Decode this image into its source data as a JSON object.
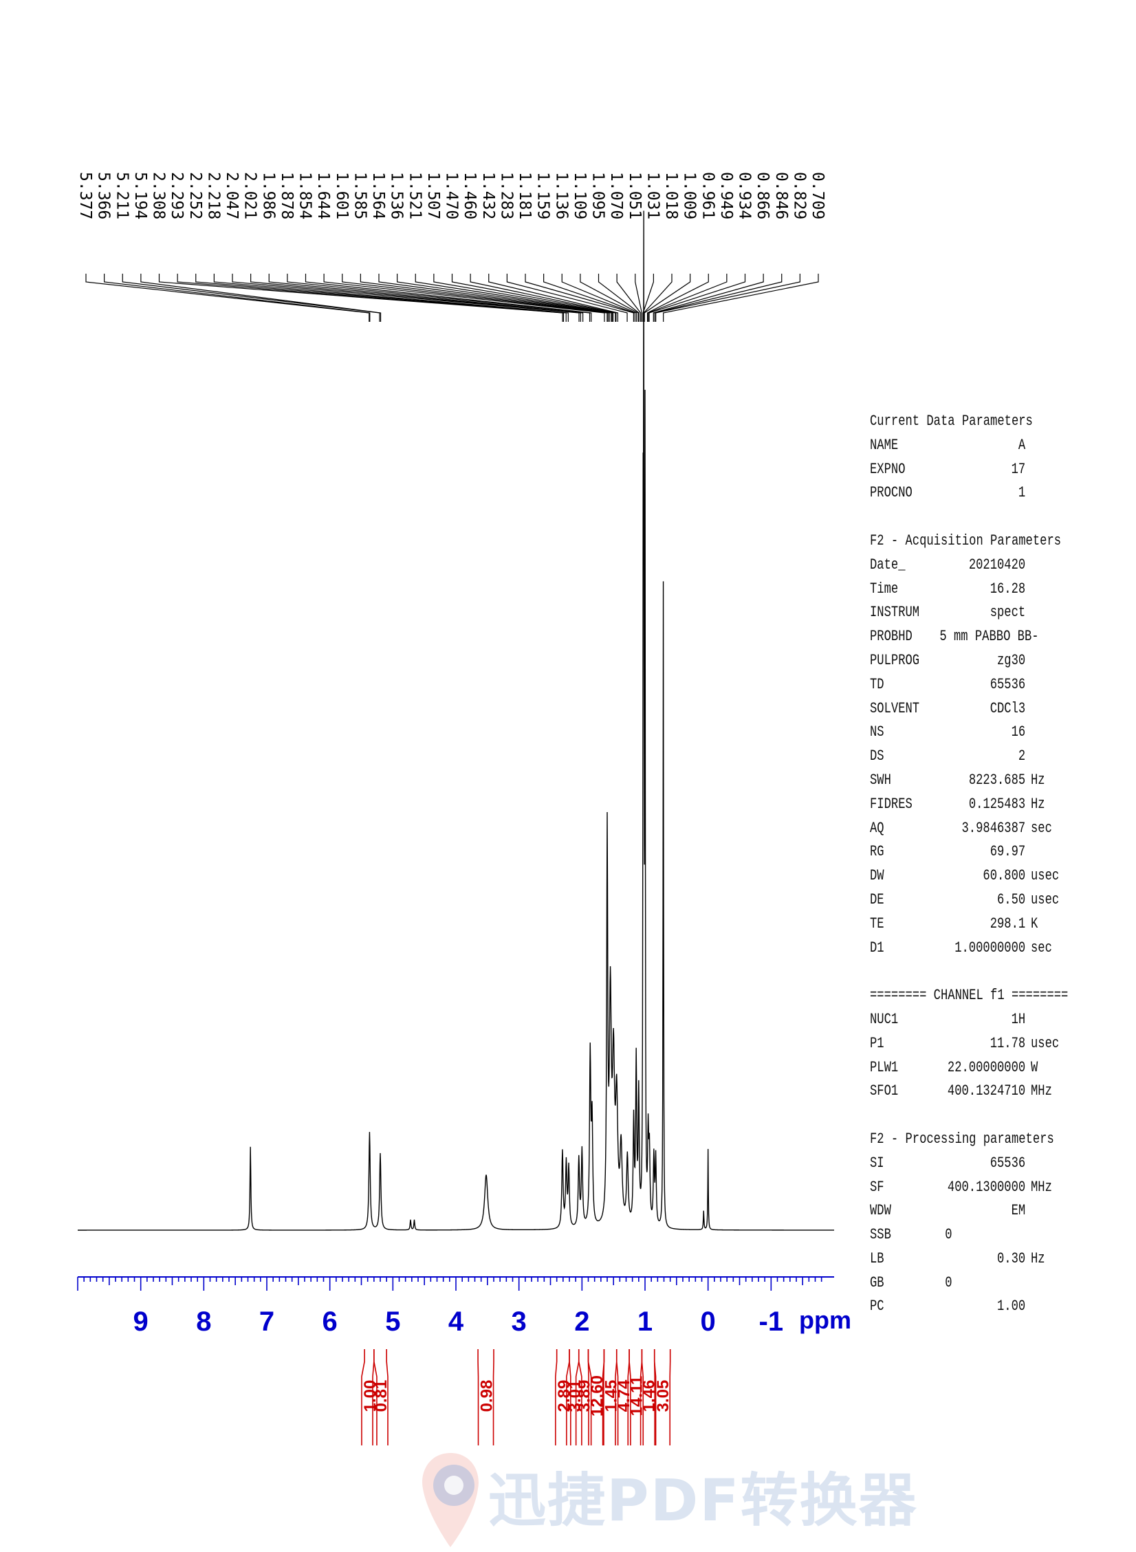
{
  "chart_data": {
    "type": "line",
    "xlabel": "ppm",
    "xlim": [
      10.0,
      -2.0
    ],
    "x_reversed": true,
    "x_ticks": [
      "9",
      "8",
      "7",
      "6",
      "5",
      "4",
      "3",
      "2",
      "1",
      "0",
      "-1"
    ],
    "peak_labels": [
      "5.377",
      "5.366",
      "5.211",
      "5.194",
      "2.308",
      "2.293",
      "2.252",
      "2.218",
      "2.047",
      "2.021",
      "1.986",
      "1.878",
      "1.854",
      "1.644",
      "1.601",
      "1.585",
      "1.564",
      "1.536",
      "1.521",
      "1.507",
      "1.470",
      "1.460",
      "1.432",
      "1.283",
      "1.181",
      "1.159",
      "1.136",
      "1.109",
      "1.095",
      "1.070",
      "1.051",
      "1.031",
      "1.018",
      "1.009",
      "0.961",
      "0.949",
      "0.934",
      "0.866",
      "0.846",
      "0.829",
      "0.709"
    ],
    "integrals": [
      {
        "from": 5.45,
        "to": 5.3,
        "value": "1.00"
      },
      {
        "from": 5.3,
        "to": 5.1,
        "value": "0.81"
      },
      {
        "from": 3.65,
        "to": 3.4,
        "value": "0.98"
      },
      {
        "from": 2.4,
        "to": 2.2,
        "value": "2.89"
      },
      {
        "from": 2.2,
        "to": 2.05,
        "value": "3.01"
      },
      {
        "from": 2.05,
        "to": 1.9,
        "value": "3.89"
      },
      {
        "from": 1.9,
        "to": 1.65,
        "value": "12.60"
      },
      {
        "from": 1.65,
        "to": 1.45,
        "value": "1.45"
      },
      {
        "from": 1.45,
        "to": 1.25,
        "value": "4.74"
      },
      {
        "from": 1.25,
        "to": 1.05,
        "value": "14.11"
      },
      {
        "from": 1.05,
        "to": 0.85,
        "value": "1.46"
      },
      {
        "from": 0.85,
        "to": 0.6,
        "value": "3.05"
      }
    ],
    "spectrum_peaks": [
      {
        "ppm": 7.26,
        "height": 0.098,
        "width": 0.008
      },
      {
        "ppm": 5.37,
        "height": 0.115,
        "width": 0.012
      },
      {
        "ppm": 5.2,
        "height": 0.09,
        "width": 0.012
      },
      {
        "ppm": 4.72,
        "height": 0.012,
        "width": 0.008
      },
      {
        "ppm": 4.66,
        "height": 0.012,
        "width": 0.008
      },
      {
        "ppm": 3.52,
        "height": 0.065,
        "width": 0.03
      },
      {
        "ppm": 2.31,
        "height": 0.09,
        "width": 0.012
      },
      {
        "ppm": 2.25,
        "height": 0.075,
        "width": 0.012
      },
      {
        "ppm": 2.21,
        "height": 0.07,
        "width": 0.012
      },
      {
        "ppm": 2.05,
        "height": 0.08,
        "width": 0.012
      },
      {
        "ppm": 2.0,
        "height": 0.09,
        "width": 0.012
      },
      {
        "ppm": 1.87,
        "height": 0.2,
        "width": 0.012
      },
      {
        "ppm": 1.84,
        "height": 0.12,
        "width": 0.012
      },
      {
        "ppm": 1.6,
        "height": 0.45,
        "width": 0.01
      },
      {
        "ppm": 1.55,
        "height": 0.26,
        "width": 0.018
      },
      {
        "ppm": 1.5,
        "height": 0.18,
        "width": 0.02
      },
      {
        "ppm": 1.45,
        "height": 0.14,
        "width": 0.02
      },
      {
        "ppm": 1.38,
        "height": 0.09,
        "width": 0.02
      },
      {
        "ppm": 1.28,
        "height": 0.08,
        "width": 0.015
      },
      {
        "ppm": 1.18,
        "height": 0.12,
        "width": 0.01
      },
      {
        "ppm": 1.14,
        "height": 0.19,
        "width": 0.01
      },
      {
        "ppm": 1.1,
        "height": 0.15,
        "width": 0.01
      },
      {
        "ppm": 1.03,
        "height": 0.68,
        "width": 0.005
      },
      {
        "ppm": 1.02,
        "height": 1.0,
        "width": 0.005
      },
      {
        "ppm": 1.0,
        "height": 0.9,
        "width": 0.005
      },
      {
        "ppm": 0.95,
        "height": 0.1,
        "width": 0.01
      },
      {
        "ppm": 0.93,
        "height": 0.08,
        "width": 0.01
      },
      {
        "ppm": 0.86,
        "height": 0.08,
        "width": 0.01
      },
      {
        "ppm": 0.83,
        "height": 0.08,
        "width": 0.01
      },
      {
        "ppm": 0.71,
        "height": 0.76,
        "width": 0.005
      },
      {
        "ppm": 0.07,
        "height": 0.022,
        "width": 0.006
      },
      {
        "ppm": 0.0,
        "height": 0.095,
        "width": 0.005
      }
    ]
  },
  "parameters": [
    {
      "type": "header",
      "text": "Current Data Parameters"
    },
    {
      "type": "row",
      "name": "NAME",
      "value": "A",
      "unit": ""
    },
    {
      "type": "row",
      "name": "EXPNO",
      "value": "17",
      "unit": ""
    },
    {
      "type": "row",
      "name": "PROCNO",
      "value": "1",
      "unit": ""
    },
    {
      "type": "gap"
    },
    {
      "type": "header",
      "text": "F2 - Acquisition Parameters"
    },
    {
      "type": "row",
      "name": "Date_",
      "value": "20210420",
      "unit": ""
    },
    {
      "type": "row",
      "name": "Time",
      "value": "16.28",
      "unit": ""
    },
    {
      "type": "row",
      "name": "INSTRUM",
      "value": "spect",
      "unit": ""
    },
    {
      "type": "row",
      "name": "PROBHD",
      "value": "5 mm PABBO BB-",
      "unit": ""
    },
    {
      "type": "row",
      "name": "PULPROG",
      "value": "zg30",
      "unit": ""
    },
    {
      "type": "row",
      "name": "TD",
      "value": "65536",
      "unit": ""
    },
    {
      "type": "row",
      "name": "SOLVENT",
      "value": "CDCl3",
      "unit": ""
    },
    {
      "type": "row",
      "name": "NS",
      "value": "16",
      "unit": ""
    },
    {
      "type": "row",
      "name": "DS",
      "value": "2",
      "unit": ""
    },
    {
      "type": "row",
      "name": "SWH",
      "value": "8223.685",
      "unit": "Hz"
    },
    {
      "type": "row",
      "name": "FIDRES",
      "value": "0.125483",
      "unit": "Hz"
    },
    {
      "type": "row",
      "name": "AQ",
      "value": "3.9846387",
      "unit": "sec"
    },
    {
      "type": "row",
      "name": "RG",
      "value": "69.97",
      "unit": ""
    },
    {
      "type": "row",
      "name": "DW",
      "value": "60.800",
      "unit": "usec"
    },
    {
      "type": "row",
      "name": "DE",
      "value": "6.50",
      "unit": "usec"
    },
    {
      "type": "row",
      "name": "TE",
      "value": "298.1",
      "unit": "K"
    },
    {
      "type": "row",
      "name": "D1",
      "value": "1.00000000",
      "unit": "sec"
    },
    {
      "type": "gap"
    },
    {
      "type": "header",
      "text": "======== CHANNEL f1 ========"
    },
    {
      "type": "row",
      "name": "NUC1",
      "value": "1H",
      "unit": ""
    },
    {
      "type": "row",
      "name": "P1",
      "value": "11.78",
      "unit": "usec"
    },
    {
      "type": "row",
      "name": "PLW1",
      "value": "22.00000000",
      "unit": "W"
    },
    {
      "type": "row",
      "name": "SFO1",
      "value": "400.1324710",
      "unit": "MHz"
    },
    {
      "type": "gap"
    },
    {
      "type": "header",
      "text": "F2 - Processing parameters"
    },
    {
      "type": "row",
      "name": "SI",
      "value": "65536",
      "unit": ""
    },
    {
      "type": "row",
      "name": "SF",
      "value": "400.1300000",
      "unit": "MHz"
    },
    {
      "type": "row",
      "name": "WDW",
      "value": "EM",
      "unit": ""
    },
    {
      "type": "row",
      "name": "SSB",
      "value": "0",
      "unit": "",
      "left": true
    },
    {
      "type": "row",
      "name": "LB",
      "value": "0.30",
      "unit": "Hz"
    },
    {
      "type": "row",
      "name": "GB",
      "value": "0",
      "unit": "",
      "left": true
    },
    {
      "type": "row",
      "name": "PC",
      "value": "1.00",
      "unit": ""
    }
  ],
  "watermark": {
    "text": "迅捷PDF转换器"
  }
}
